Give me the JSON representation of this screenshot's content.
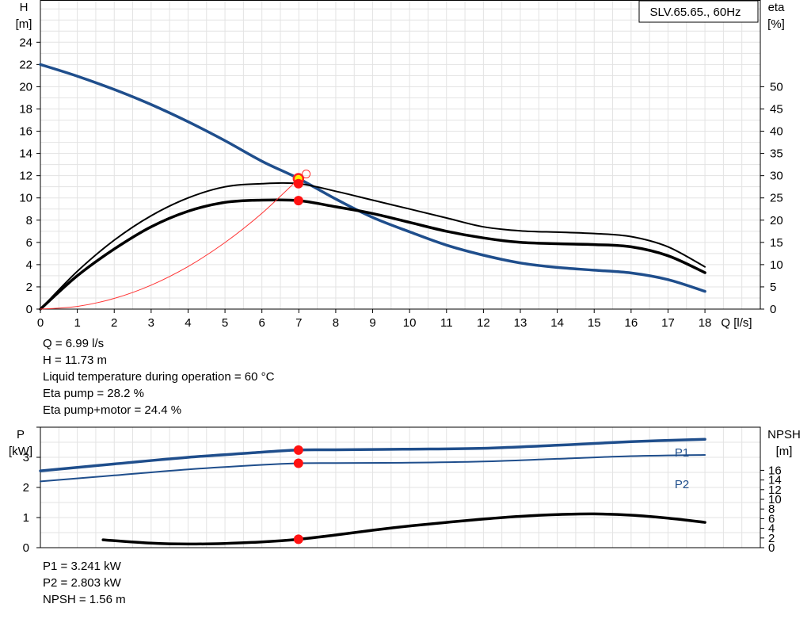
{
  "chart_data": [
    {
      "type": "line",
      "title": "SLV.65.65., 60Hz",
      "xlabel": "Q [l/s]",
      "ylabel_left_name": "H",
      "ylabel_left_unit": "[m]",
      "ylabel_right_name": "eta",
      "ylabel_right_unit": "[%]",
      "xlim": [
        0,
        19.5
      ],
      "ylim_left": [
        0,
        27.8
      ],
      "ylim_right": [
        0,
        69.5
      ],
      "xticks": [
        0,
        1,
        2,
        3,
        4,
        5,
        6,
        7,
        8,
        9,
        10,
        11,
        12,
        13,
        14,
        15,
        16,
        17,
        18
      ],
      "yticks_left": [
        0,
        2,
        4,
        6,
        8,
        10,
        12,
        14,
        16,
        18,
        20,
        22,
        24
      ],
      "yticks_right": [
        0,
        5,
        10,
        15,
        20,
        25,
        30,
        35,
        40,
        45,
        50
      ],
      "grid": true,
      "series": [
        {
          "axis": "left",
          "color": "#1f4e8c",
          "width": 3.5,
          "x": [
            0,
            1,
            2,
            3,
            4,
            5,
            6,
            7,
            8,
            9,
            10,
            11,
            12,
            13,
            14,
            15,
            16,
            17,
            18
          ],
          "values": [
            22.0,
            20.95,
            19.75,
            18.4,
            16.85,
            15.15,
            13.3,
            11.73,
            9.9,
            8.25,
            6.95,
            5.75,
            4.85,
            4.15,
            3.75,
            3.5,
            3.25,
            2.65,
            1.6
          ]
        },
        {
          "axis": "right",
          "color": "#000000",
          "width": 2,
          "x": [
            0,
            1,
            2,
            3,
            4,
            5,
            6,
            7,
            8,
            9,
            10,
            11,
            12,
            13,
            14,
            15,
            16,
            17,
            18
          ],
          "values": [
            0,
            8.5,
            15.5,
            21,
            25,
            27.5,
            28.2,
            28.2,
            26.5,
            24.5,
            22.5,
            20.5,
            18.5,
            17.6,
            17.3,
            17.0,
            16.3,
            14.0,
            9.5
          ]
        },
        {
          "axis": "right",
          "color": "#000000",
          "width": 3.5,
          "x": [
            0,
            1,
            2,
            3,
            4,
            5,
            6,
            7,
            8,
            9,
            10,
            11,
            12,
            13,
            14,
            15,
            16,
            17,
            18
          ],
          "values": [
            0,
            7.5,
            13.5,
            18.5,
            22,
            24,
            24.5,
            24.4,
            23,
            21.5,
            19.5,
            17.5,
            16,
            15,
            14.7,
            14.5,
            14.0,
            12,
            8.2
          ]
        },
        {
          "axis": "left",
          "color": "#ff3333",
          "width": 1,
          "x": [
            0,
            1,
            2,
            3,
            4,
            5,
            6,
            7
          ],
          "values": [
            0,
            0.24,
            0.96,
            2.15,
            3.83,
            5.99,
            8.62,
            11.73
          ]
        }
      ],
      "operating_point": {
        "q": 6.99,
        "h": 11.73,
        "eta_pump": 28.2,
        "eta_pump_motor": 24.4
      }
    },
    {
      "type": "line",
      "ylabel_left_name": "P",
      "ylabel_left_unit": "[kW]",
      "ylabel_right_name": "NPSH",
      "ylabel_right_unit": "[m]",
      "xlim": [
        0,
        19.5
      ],
      "ylim_left": [
        0,
        4
      ],
      "yticks_left": [
        0,
        1,
        2,
        3
      ],
      "yticks_right": [
        0,
        2,
        4,
        6,
        8,
        10,
        12,
        14,
        16
      ],
      "grid": true,
      "series": [
        {
          "name": "P1",
          "axis": "left",
          "color": "#1f4e8c",
          "width": 3.5,
          "x": [
            0,
            2,
            4,
            6,
            7,
            8,
            10,
            12,
            14,
            16,
            18
          ],
          "values": [
            2.55,
            2.78,
            3.0,
            3.17,
            3.241,
            3.25,
            3.27,
            3.3,
            3.4,
            3.52,
            3.6
          ]
        },
        {
          "name": "P2",
          "axis": "left",
          "color": "#1f4e8c",
          "width": 2,
          "x": [
            0,
            2,
            4,
            6,
            7,
            8,
            10,
            12,
            14,
            16,
            18
          ],
          "values": [
            2.2,
            2.4,
            2.6,
            2.75,
            2.803,
            2.81,
            2.82,
            2.86,
            2.95,
            3.04,
            3.08
          ]
        },
        {
          "name": "",
          "axis": "left",
          "color": "#000000",
          "width": 3.5,
          "x": [
            1.7,
            3,
            4,
            5,
            6,
            7,
            8,
            9,
            10,
            11,
            12,
            13,
            14,
            15,
            16,
            17,
            18
          ],
          "values": [
            0.26,
            0.15,
            0.12,
            0.14,
            0.19,
            0.28,
            0.42,
            0.58,
            0.72,
            0.84,
            0.95,
            1.04,
            1.1,
            1.12,
            1.08,
            0.98,
            0.84
          ]
        }
      ],
      "operating_point": {
        "p1": 3.241,
        "p2": 2.803,
        "npsh": 1.56
      }
    }
  ],
  "info_top": [
    "Q = 6.99 l/s",
    "H = 11.73 m",
    "Liquid temperature during operation = 60 °C",
    "Eta pump = 28.2 %",
    "Eta pump+motor = 24.4 %"
  ],
  "info_bottom": [
    "P1 = 3.241 kW",
    "P2 = 2.803 kW",
    "NPSH = 1.56 m"
  ]
}
